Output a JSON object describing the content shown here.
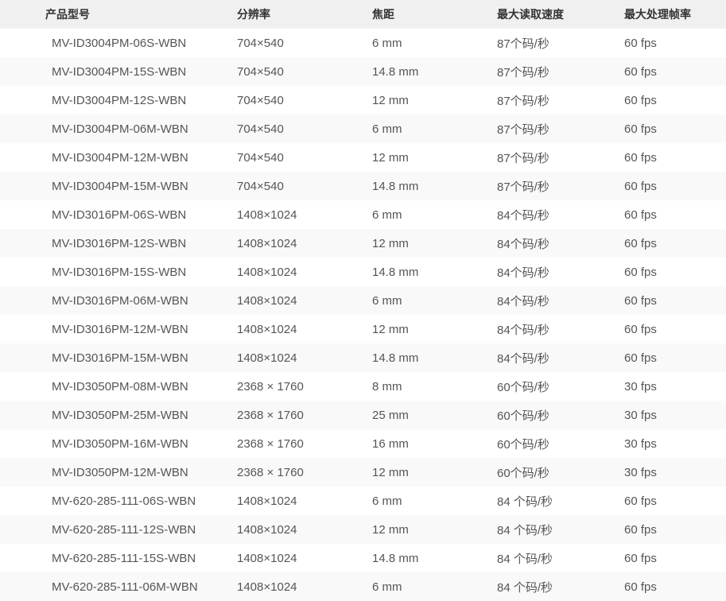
{
  "table": {
    "columns": [
      "产品型号",
      "分辨率",
      "焦距",
      "最大读取速度",
      "最大处理帧率"
    ],
    "rows": [
      [
        "MV-ID3004PM-06S-WBN",
        "704×540",
        "6 mm",
        "87个码/秒",
        "60 fps"
      ],
      [
        "MV-ID3004PM-15S-WBN",
        "704×540",
        "14.8 mm",
        "87个码/秒",
        "60 fps"
      ],
      [
        "MV-ID3004PM-12S-WBN",
        "704×540",
        "12 mm",
        "87个码/秒",
        "60 fps"
      ],
      [
        "MV-ID3004PM-06M-WBN",
        "704×540",
        "6 mm",
        "87个码/秒",
        "60 fps"
      ],
      [
        "MV-ID3004PM-12M-WBN",
        "704×540",
        "12 mm",
        "87个码/秒",
        "60 fps"
      ],
      [
        "MV-ID3004PM-15M-WBN",
        "704×540",
        "14.8 mm",
        "87个码/秒",
        "60 fps"
      ],
      [
        "MV-ID3016PM-06S-WBN",
        "1408×1024",
        "6 mm",
        "84个码/秒",
        "60 fps"
      ],
      [
        "MV-ID3016PM-12S-WBN",
        "1408×1024",
        "12 mm",
        "84个码/秒",
        "60 fps"
      ],
      [
        "MV-ID3016PM-15S-WBN",
        "1408×1024",
        "14.8 mm",
        "84个码/秒",
        "60 fps"
      ],
      [
        "MV-ID3016PM-06M-WBN",
        "1408×1024",
        "6 mm",
        "84个码/秒",
        "60 fps"
      ],
      [
        "MV-ID3016PM-12M-WBN",
        "1408×1024",
        "12 mm",
        "84个码/秒",
        "60 fps"
      ],
      [
        "MV-ID3016PM-15M-WBN",
        "1408×1024",
        "14.8 mm",
        "84个码/秒",
        "60 fps"
      ],
      [
        "MV-ID3050PM-08M-WBN",
        "2368 × 1760",
        "8 mm",
        "60个码/秒",
        "30 fps"
      ],
      [
        "MV-ID3050PM-25M-WBN",
        "2368 × 1760",
        "25 mm",
        "60个码/秒",
        "30 fps"
      ],
      [
        "MV-ID3050PM-16M-WBN",
        "2368 × 1760",
        "16 mm",
        "60个码/秒",
        "30 fps"
      ],
      [
        "MV-ID3050PM-12M-WBN",
        "2368 × 1760",
        "12 mm",
        "60个码/秒",
        "30 fps"
      ],
      [
        "MV-620-285-111-06S-WBN",
        "1408×1024",
        "6 mm",
        "84 个码/秒",
        "60 fps"
      ],
      [
        "MV-620-285-111-12S-WBN",
        "1408×1024",
        "12 mm",
        "84 个码/秒",
        "60 fps"
      ],
      [
        "MV-620-285-111-15S-WBN",
        "1408×1024",
        "14.8 mm",
        "84 个码/秒",
        "60 fps"
      ],
      [
        "MV-620-285-111-06M-WBN",
        "1408×1024",
        "6 mm",
        "84 个码/秒",
        "60 fps"
      ]
    ]
  },
  "colors": {
    "header_bg": "#f0f0f0",
    "row_alt_bg": "#f9f9f9",
    "row_bg": "#ffffff",
    "header_text": "#333333",
    "cell_text": "#555555"
  }
}
